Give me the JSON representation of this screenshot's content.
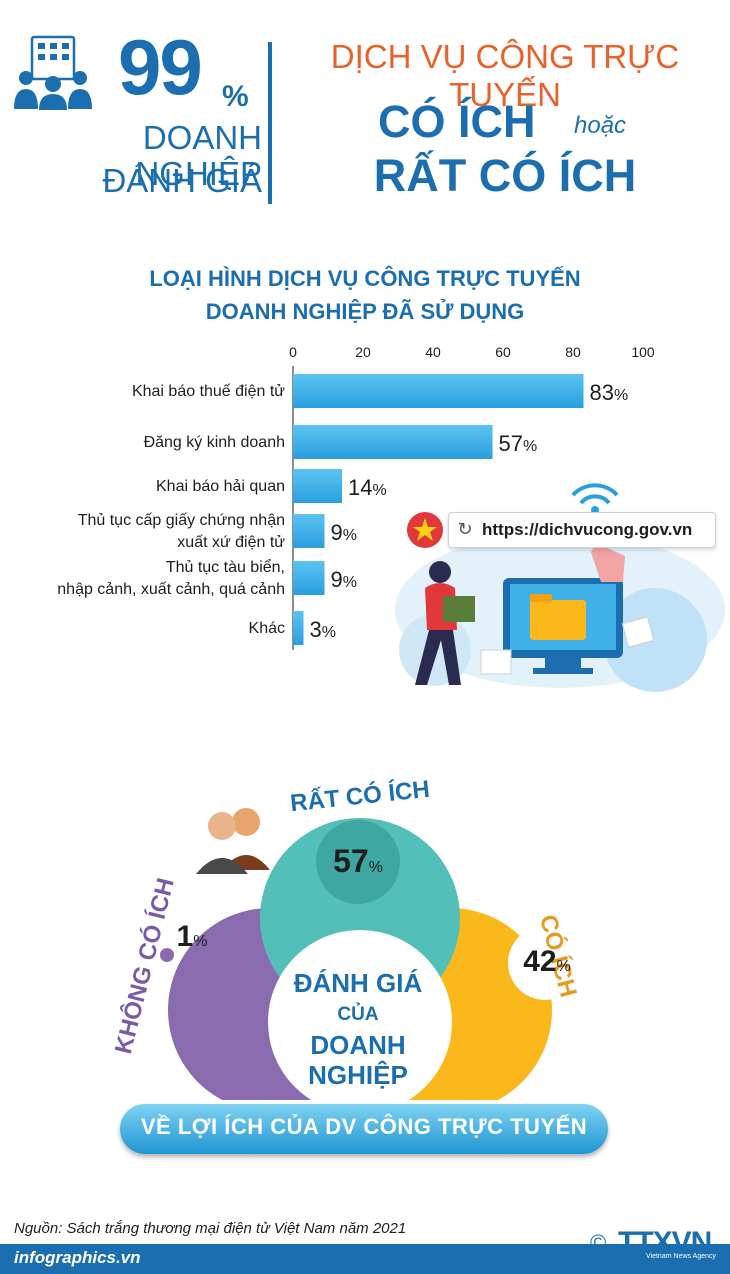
{
  "header": {
    "percent": "99",
    "percent_sign": "%",
    "left_line1": "DOANH NGHIỆP",
    "left_line2": "ĐÁNH GIÁ",
    "right_line1": "DỊCH VỤ CÔNG TRỰC TUYẾN",
    "right_line2": "CÓ ÍCH",
    "right_line2_connector": "hoặc",
    "right_line3": "RẤT CÓ ÍCH"
  },
  "illustration": {
    "url": "https://dichvucong.gov.vn",
    "refresh_glyph": "↻"
  },
  "chart_data": [
    {
      "type": "bar",
      "orientation": "horizontal",
      "title_line1": "LOẠI HÌNH DỊCH VỤ CÔNG TRỰC TUYẾN",
      "title_line2": "DOANH NGHIỆP ĐÃ SỬ DỤNG",
      "categories": [
        [
          "Khai báo thuế điện tử"
        ],
        [
          "Đăng ký kinh doanh"
        ],
        [
          "Khai báo hải quan"
        ],
        [
          "Thủ tục cấp giấy chứng nhận",
          "xuất xứ điện tử"
        ],
        [
          "Thủ tục tàu biển,",
          "nhập cảnh, xuất cảnh, quá cảnh"
        ],
        [
          "Khác"
        ]
      ],
      "values": [
        83,
        57,
        14,
        9,
        9,
        3
      ],
      "value_labels": [
        "83",
        "57",
        "14",
        "9",
        "9",
        "3"
      ],
      "unit": "%",
      "xlim": [
        0,
        100
      ],
      "xticks": [
        "0",
        "20",
        "40",
        "60",
        "80",
        "100"
      ],
      "grid": false,
      "bar_color": "#2a9fe0"
    },
    {
      "type": "pie",
      "style": "venn",
      "center_line1": "ĐÁNH GIÁ",
      "center_line2": "CỦA",
      "center_line3": "DOANH",
      "center_line4": "NGHIỆP",
      "categories": [
        "RẤT CÓ ÍCH",
        "CÓ ÍCH",
        "KHÔNG CÓ ÍCH"
      ],
      "values": [
        57,
        42,
        1
      ],
      "unit": "%",
      "colors": [
        "#52bfb8",
        "#fbb81a",
        "#8a6bb0"
      ],
      "banner": "VỀ LỢI ÍCH CỦA DV CÔNG TRỰC TUYẾN"
    }
  ],
  "footer": {
    "source": "Nguồn: Sách trắng thương mại điện tử Việt Nam năm 2021",
    "site": "infographics.vn",
    "copyright": "©",
    "agency": "TTXVN",
    "agency_sub": "Vietnam News Agency"
  },
  "colors": {
    "primary_blue": "#1b6fb0",
    "accent_orange": "#e8622a"
  }
}
